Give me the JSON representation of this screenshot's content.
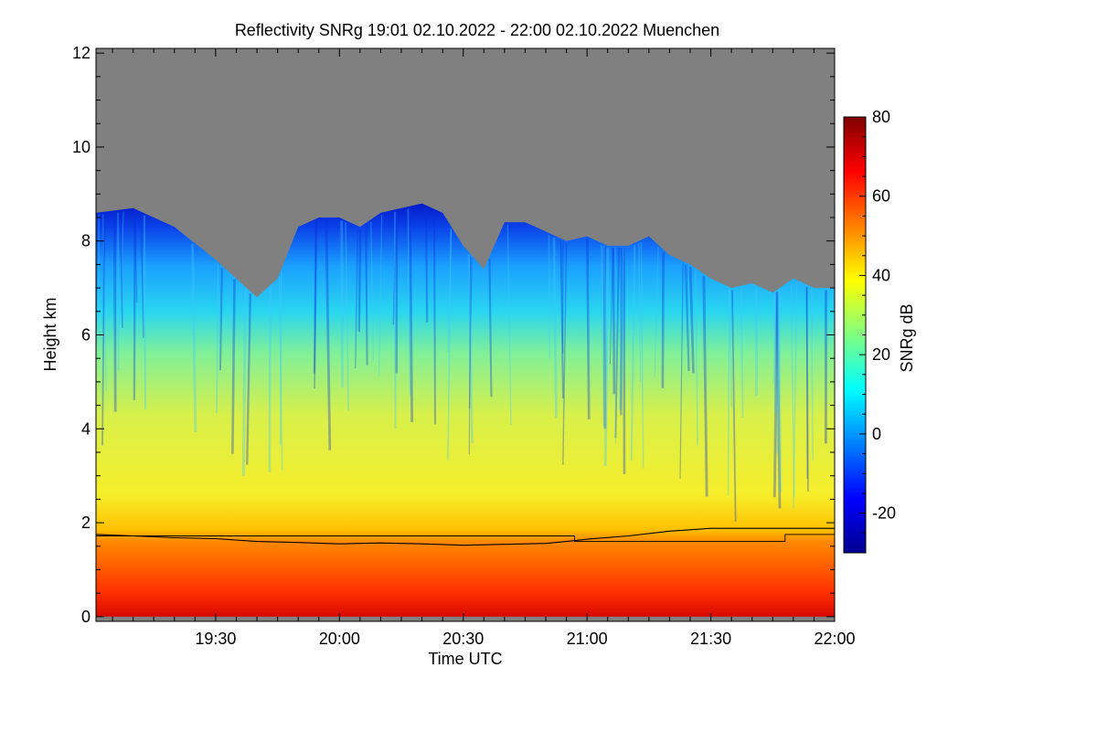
{
  "chart_data": {
    "type": "heatmap",
    "title": "Reflectivity SNRg   19:01 02.10.2022 - 22:00 02.10.2022 Muenchen",
    "xlabel": "Time UTC",
    "ylabel": "Height km",
    "colorbar_label": "SNRg dB",
    "x_range_minutes_utc": [
      1141,
      1320
    ],
    "x_ticks": [
      {
        "value": 1170,
        "label": "19:30"
      },
      {
        "value": 1200,
        "label": "20:00"
      },
      {
        "value": 1230,
        "label": "20:30"
      },
      {
        "value": 1260,
        "label": "21:00"
      },
      {
        "value": 1290,
        "label": "21:30"
      },
      {
        "value": 1320,
        "label": "22:00"
      }
    ],
    "y_range": [
      -0.1,
      12.1
    ],
    "y_ticks": [
      0,
      2,
      4,
      6,
      8,
      10,
      12
    ],
    "colorbar_range": [
      -30,
      80
    ],
    "colorbar_ticks": [
      -20,
      0,
      20,
      40,
      60,
      80
    ],
    "no_data_color": "#808080",
    "colormap": [
      "#00008f",
      "#0000ff",
      "#0080ff",
      "#00ffff",
      "#80ff80",
      "#ffff00",
      "#ff8000",
      "#ff0000",
      "#800000"
    ],
    "echo_top_km": [
      {
        "t": 1141,
        "h": 8.6
      },
      {
        "t": 1150,
        "h": 8.7
      },
      {
        "t": 1160,
        "h": 8.3
      },
      {
        "t": 1170,
        "h": 7.6
      },
      {
        "t": 1180,
        "h": 6.8
      },
      {
        "t": 1185,
        "h": 7.2
      },
      {
        "t": 1190,
        "h": 8.3
      },
      {
        "t": 1195,
        "h": 8.5
      },
      {
        "t": 1200,
        "h": 8.5
      },
      {
        "t": 1205,
        "h": 8.3
      },
      {
        "t": 1210,
        "h": 8.6
      },
      {
        "t": 1215,
        "h": 8.7
      },
      {
        "t": 1220,
        "h": 8.8
      },
      {
        "t": 1225,
        "h": 8.6
      },
      {
        "t": 1230,
        "h": 7.9
      },
      {
        "t": 1235,
        "h": 7.4
      },
      {
        "t": 1240,
        "h": 8.4
      },
      {
        "t": 1245,
        "h": 8.4
      },
      {
        "t": 1250,
        "h": 8.2
      },
      {
        "t": 1255,
        "h": 8.0
      },
      {
        "t": 1260,
        "h": 8.1
      },
      {
        "t": 1265,
        "h": 7.9
      },
      {
        "t": 1270,
        "h": 7.9
      },
      {
        "t": 1275,
        "h": 8.1
      },
      {
        "t": 1280,
        "h": 7.7
      },
      {
        "t": 1285,
        "h": 7.5
      },
      {
        "t": 1290,
        "h": 7.2
      },
      {
        "t": 1295,
        "h": 7.0
      },
      {
        "t": 1300,
        "h": 7.1
      },
      {
        "t": 1305,
        "h": 6.9
      },
      {
        "t": 1310,
        "h": 7.2
      },
      {
        "t": 1315,
        "h": 7.0
      },
      {
        "t": 1320,
        "h": 7.0
      }
    ],
    "melting_layer_km": [
      {
        "t": 1141,
        "h": 1.75
      },
      {
        "t": 1150,
        "h": 1.72
      },
      {
        "t": 1160,
        "h": 1.68
      },
      {
        "t": 1170,
        "h": 1.66
      },
      {
        "t": 1180,
        "h": 1.6
      },
      {
        "t": 1190,
        "h": 1.58
      },
      {
        "t": 1200,
        "h": 1.55
      },
      {
        "t": 1210,
        "h": 1.57
      },
      {
        "t": 1220,
        "h": 1.55
      },
      {
        "t": 1230,
        "h": 1.52
      },
      {
        "t": 1240,
        "h": 1.54
      },
      {
        "t": 1250,
        "h": 1.56
      },
      {
        "t": 1255,
        "h": 1.6
      },
      {
        "t": 1260,
        "h": 1.65
      },
      {
        "t": 1270,
        "h": 1.72
      },
      {
        "t": 1280,
        "h": 1.82
      },
      {
        "t": 1285,
        "h": 1.85
      },
      {
        "t": 1290,
        "h": 1.88
      },
      {
        "t": 1320,
        "h": 1.88
      }
    ],
    "lower_reference_km": [
      {
        "t": 1141,
        "h": 1.72
      },
      {
        "t": 1257,
        "h": 1.72
      },
      {
        "t": 1257,
        "h": 1.6
      },
      {
        "t": 1308,
        "h": 1.6
      },
      {
        "t": 1308,
        "h": 1.75
      },
      {
        "t": 1320,
        "h": 1.75
      }
    ]
  }
}
